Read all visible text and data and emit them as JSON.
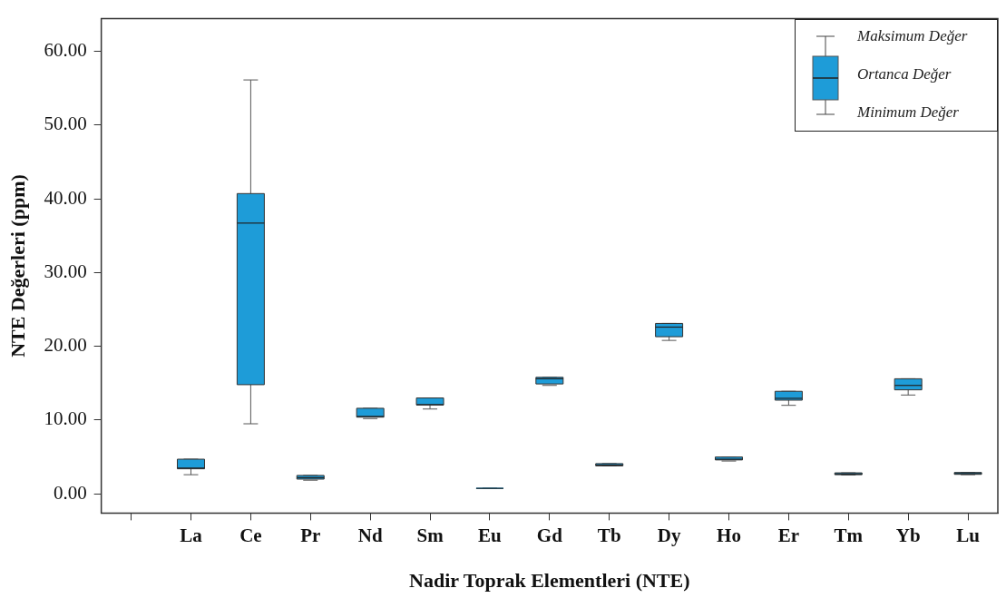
{
  "chart_data": {
    "type": "box",
    "xlabel": "Nadir Toprak Elementleri (NTE)",
    "ylabel": "NTE Değerleri (ppm)",
    "categories": [
      null,
      "La",
      "Ce",
      "Pr",
      "Nd",
      "Sm",
      "Eu",
      "Gd",
      "Tb",
      "Dy",
      "Ho",
      "Er",
      "Tm",
      "Yb",
      "Lu"
    ],
    "color": "#1e9cd8",
    "boxes": [
      null,
      {
        "low": 2.6,
        "q1": 3.4,
        "median": 3.5,
        "q3": 4.7,
        "high": 4.7
      },
      {
        "low": 9.5,
        "q1": 14.8,
        "median": 36.7,
        "q3": 40.7,
        "high": 56.1
      },
      {
        "low": 1.85,
        "q1": 2.0,
        "median": 2.2,
        "q3": 2.5,
        "high": 2.5
      },
      {
        "low": 10.2,
        "q1": 10.4,
        "median": 10.5,
        "q3": 11.6,
        "high": 11.6
      },
      {
        "low": 11.5,
        "q1": 12.05,
        "median": 12.1,
        "q3": 13.0,
        "high": 13.0
      },
      {
        "low": 0.75,
        "q1": 0.75,
        "median": 0.75,
        "q3": 0.75,
        "high": 0.75
      },
      {
        "low": 14.7,
        "q1": 14.9,
        "median": 15.6,
        "q3": 15.8,
        "high": 15.8
      },
      {
        "low": 3.8,
        "q1": 3.8,
        "median": 3.9,
        "q3": 4.1,
        "high": 4.1
      },
      {
        "low": 20.8,
        "q1": 21.3,
        "median": 22.6,
        "q3": 23.1,
        "high": 23.1
      },
      {
        "low": 4.45,
        "q1": 4.6,
        "median": 4.7,
        "q3": 5.0,
        "high": 5.0
      },
      {
        "low": 12.0,
        "q1": 12.7,
        "median": 12.95,
        "q3": 13.9,
        "high": 13.9
      },
      {
        "low": 2.55,
        "q1": 2.6,
        "median": 2.7,
        "q3": 2.85,
        "high": 2.85
      },
      {
        "low": 13.4,
        "q1": 14.1,
        "median": 14.7,
        "q3": 15.6,
        "high": 15.6
      },
      {
        "low": 2.6,
        "q1": 2.65,
        "median": 2.75,
        "q3": 2.9,
        "high": 2.9
      }
    ],
    "ylim": [
      -2.6,
      64.4
    ],
    "yticks": [
      {
        "value": 0,
        "label": "0.00"
      },
      {
        "value": 10,
        "label": "10.00"
      },
      {
        "value": 20,
        "label": "20.00"
      },
      {
        "value": 30,
        "label": "30.00"
      },
      {
        "value": 40,
        "label": "40.00"
      },
      {
        "value": 50,
        "label": "50.00"
      },
      {
        "value": 60,
        "label": "60.00"
      }
    ],
    "grid": false,
    "annotations": [
      "Maksimum Değer",
      "Ortanca Değer",
      "Minimum Değer"
    ]
  }
}
